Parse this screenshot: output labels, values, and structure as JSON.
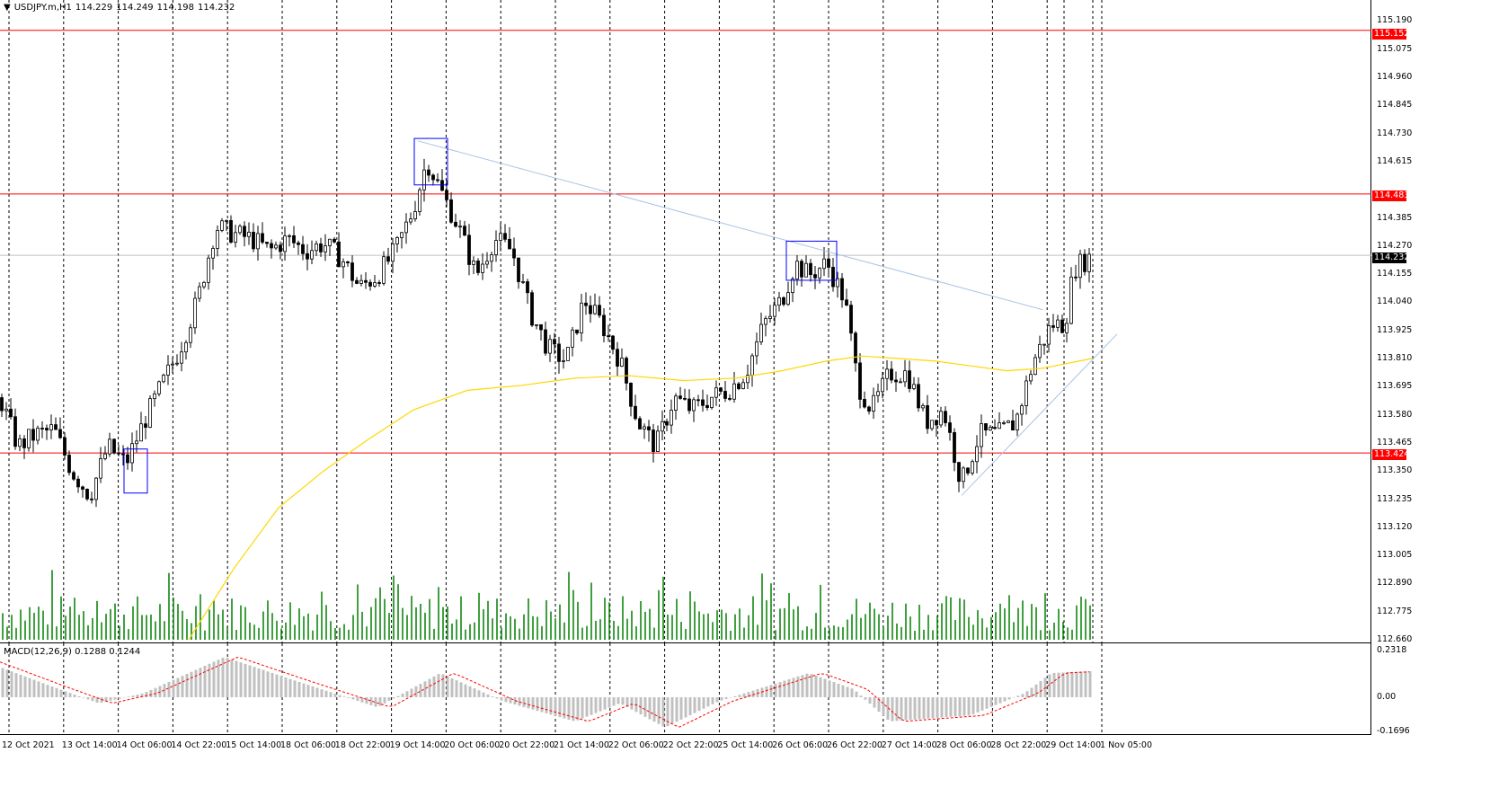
{
  "header": {
    "symbol": "USDJPY.m,H1",
    "open": "114.229",
    "high": "114.249",
    "low": "114.198",
    "close": "114.232"
  },
  "price_axis_labels": [
    "115.190",
    "115.075",
    "114.960",
    "114.845",
    "114.730",
    "114.615",
    "114.385",
    "114.270",
    "114.155",
    "114.040",
    "113.925",
    "113.810",
    "113.695",
    "113.580",
    "113.465",
    "113.350",
    "113.235",
    "113.120",
    "113.005",
    "112.890",
    "112.775",
    "112.660"
  ],
  "price_tags": {
    "level_1": "115.152",
    "level_2": "114.483",
    "current": "114.232",
    "level_3": "113.424"
  },
  "macd": {
    "label": "MACD(12,26,9) 0.1288 0.1244",
    "axis_labels": [
      "0.2318",
      "0.00",
      "-0.1696"
    ]
  },
  "time_labels": [
    "12 Oct 2021",
    "13 Oct 14:00",
    "14 Oct 06:00",
    "14 Oct 22:00",
    "15 Oct 14:00",
    "18 Oct 06:00",
    "18 Oct 22:00",
    "19 Oct 14:00",
    "20 Oct 06:00",
    "20 Oct 22:00",
    "21 Oct 14:00",
    "22 Oct 06:00",
    "22 Oct 22:00",
    "25 Oct 14:00",
    "26 Oct 06:00",
    "26 Oct 22:00",
    "27 Oct 14:00",
    "28 Oct 06:00",
    "28 Oct 22:00",
    "29 Oct 14:00",
    "1 Nov 05:00"
  ],
  "colors": {
    "background": "#ffffff",
    "candle": "#000000",
    "level_line": "#ff0000",
    "moving_average": "#ffd700",
    "volume": "#008000",
    "trend_line": "#a9c4e4",
    "highlight_box": "#0000ff",
    "macd_histogram": "#c0c0c0",
    "macd_signal": "#ff0000",
    "current_price_tag": "#000000"
  },
  "chart_data": {
    "type": "candlestick",
    "symbol": "USDJPY.m",
    "timeframe": "H1",
    "y_range": [
      112.66,
      115.21
    ],
    "horizontal_levels": [
      115.152,
      114.483,
      113.424
    ],
    "current_price": 114.232,
    "close_path": [
      [
        0,
        113.65
      ],
      [
        20,
        113.45
      ],
      [
        40,
        113.5
      ],
      [
        60,
        113.52
      ],
      [
        80,
        113.35
      ],
      [
        100,
        113.25
      ],
      [
        120,
        113.45
      ],
      [
        140,
        113.38
      ],
      [
        160,
        113.55
      ],
      [
        180,
        113.7
      ],
      [
        200,
        113.85
      ],
      [
        220,
        114.05
      ],
      [
        240,
        114.35
      ],
      [
        260,
        114.32
      ],
      [
        280,
        114.3
      ],
      [
        300,
        114.25
      ],
      [
        320,
        114.3
      ],
      [
        340,
        114.25
      ],
      [
        360,
        114.28
      ],
      [
        380,
        114.22
      ],
      [
        400,
        114.1
      ],
      [
        420,
        114.15
      ],
      [
        440,
        114.25
      ],
      [
        460,
        114.42
      ],
      [
        475,
        114.62
      ],
      [
        490,
        114.5
      ],
      [
        510,
        114.35
      ],
      [
        530,
        114.15
      ],
      [
        550,
        114.3
      ],
      [
        570,
        114.25
      ],
      [
        590,
        114.0
      ],
      [
        610,
        113.85
      ],
      [
        630,
        113.8
      ],
      [
        650,
        114.05
      ],
      [
        670,
        113.95
      ],
      [
        690,
        113.8
      ],
      [
        710,
        113.55
      ],
      [
        730,
        113.45
      ],
      [
        750,
        113.65
      ],
      [
        770,
        113.6
      ],
      [
        790,
        113.65
      ],
      [
        810,
        113.68
      ],
      [
        830,
        113.75
      ],
      [
        850,
        113.95
      ],
      [
        870,
        114.05
      ],
      [
        885,
        114.2
      ],
      [
        900,
        114.15
      ],
      [
        920,
        114.2
      ],
      [
        940,
        114.05
      ],
      [
        955,
        113.7
      ],
      [
        970,
        113.6
      ],
      [
        990,
        113.75
      ],
      [
        1010,
        113.75
      ],
      [
        1030,
        113.55
      ],
      [
        1050,
        113.6
      ],
      [
        1070,
        113.3
      ],
      [
        1090,
        113.5
      ],
      [
        1110,
        113.5
      ],
      [
        1130,
        113.55
      ],
      [
        1150,
        113.8
      ],
      [
        1170,
        113.95
      ],
      [
        1185,
        113.95
      ],
      [
        1195,
        114.18
      ],
      [
        1215,
        114.23
      ]
    ],
    "moving_average_path": [
      [
        210,
        112.66
      ],
      [
        260,
        112.95
      ],
      [
        310,
        113.2
      ],
      [
        360,
        113.35
      ],
      [
        410,
        113.48
      ],
      [
        460,
        113.6
      ],
      [
        520,
        113.68
      ],
      [
        580,
        113.7
      ],
      [
        640,
        113.73
      ],
      [
        700,
        113.74
      ],
      [
        760,
        113.72
      ],
      [
        820,
        113.73
      ],
      [
        870,
        113.76
      ],
      [
        920,
        113.8
      ],
      [
        960,
        113.82
      ],
      [
        1000,
        113.81
      ],
      [
        1040,
        113.8
      ],
      [
        1080,
        113.78
      ],
      [
        1120,
        113.76
      ],
      [
        1160,
        113.77
      ],
      [
        1215,
        113.81
      ]
    ],
    "trend_lines": [
      {
        "from": [
          465,
          114.7
        ],
        "to": [
          1160,
          114.01
        ]
      },
      {
        "from": [
          1070,
          113.25
        ],
        "to": [
          1243,
          113.91
        ]
      }
    ],
    "highlight_boxes": [
      {
        "x": [
          138,
          164
        ],
        "y": [
          113.44,
          113.26
        ]
      },
      {
        "x": [
          461,
          498
        ],
        "y": [
          114.71,
          114.52
        ]
      },
      {
        "x": [
          875,
          931
        ],
        "y": [
          114.29,
          114.13
        ]
      }
    ],
    "vertical_grid_time_labels": true
  }
}
